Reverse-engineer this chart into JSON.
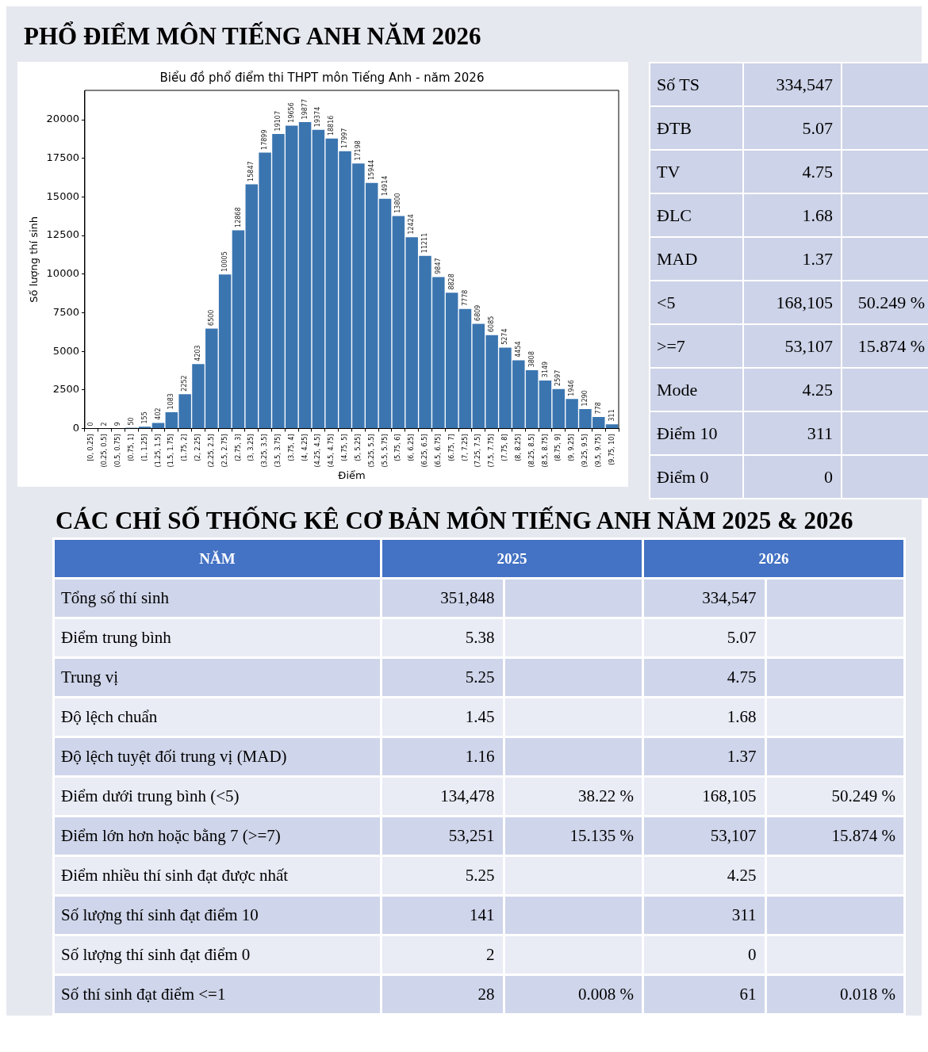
{
  "chart_data": [
    {
      "type": "other",
      "title": "PHỔ ĐIỂM MÔN TIẾNG ANH NĂM 2026"
    },
    {
      "type": "bar",
      "title": "Biểu đồ phổ điểm thi THPT môn Tiếng Anh - năm 2026",
      "xlabel": "Điểm",
      "ylabel": "Số lượng thí sinh",
      "color": "#3a75b0",
      "data_labels": true,
      "categories": [
        "[0, 0.25]",
        "(0.25, 0.5]",
        "(0.5, 0.75]",
        "(0.75, 1]",
        "(1, 1.25]",
        "(1.25, 1.5]",
        "(1.5, 1.75]",
        "(1.75, 2]",
        "(2, 2.25]",
        "(2.25, 2.5]",
        "(2.5, 2.75]",
        "(2.75, 3]",
        "(3, 3.25]",
        "(3.25, 3.5]",
        "(3.5, 3.75]",
        "(3.75, 4]",
        "(4, 4.25]",
        "(4.25, 4.5]",
        "(4.5, 4.75]",
        "(4.75, 5]",
        "(5, 5.25]",
        "(5.25, 5.5]",
        "(5.5, 5.75]",
        "(5.75, 6]",
        "(6, 6.25]",
        "(6.25, 6.5]",
        "(6.5, 6.75]",
        "(6.75, 7]",
        "(7, 7.25]",
        "(7.25, 7.5]",
        "(7.5, 7.75]",
        "(7.75, 8]",
        "(8, 8.25]",
        "(8.25, 8.5]",
        "(8.5, 8.75]",
        "(8.75, 9]",
        "(9, 9.25]",
        "(9.25, 9.5]",
        "(9.5, 9.75]",
        "(9.75, 10]"
      ],
      "values": [
        0,
        2,
        9,
        50,
        155,
        402,
        1083,
        2252,
        4203,
        6500,
        10005,
        12868,
        15847,
        17899,
        19107,
        19656,
        19877,
        19374,
        18816,
        17997,
        17198,
        15944,
        14914,
        13800,
        12424,
        11211,
        9847,
        8828,
        7778,
        6809,
        6085,
        5274,
        4454,
        3808,
        3149,
        2597,
        1946,
        1290,
        778,
        311
      ],
      "ylim": [
        0,
        21900
      ],
      "yticks": [
        0,
        2500,
        5000,
        7500,
        10000,
        12500,
        15000,
        17500,
        20000
      ]
    },
    {
      "type": "other",
      "y_categories": [
        "Số TS",
        "ĐTB",
        "TV",
        "ĐLC",
        "MAD",
        "<5",
        ">=7",
        "Mode",
        "Điểm 10",
        "Điểm 0"
      ],
      "cell_labels": [
        [
          "334,547",
          null
        ],
        [
          "5.07",
          null
        ],
        [
          "4.75",
          null
        ],
        [
          "1.68",
          null
        ],
        [
          "1.37",
          null
        ],
        [
          "168,105",
          "50.249 %"
        ],
        [
          "53,107",
          "15.874 %"
        ],
        [
          "4.25",
          null
        ],
        [
          "311",
          null
        ],
        [
          "0",
          null
        ]
      ]
    },
    {
      "type": "other",
      "title": "CÁC CHỈ SỐ THỐNG KÊ CƠ BẢN MÔN TIẾNG ANH NĂM 2025 & 2026",
      "categories": [
        "NĂM",
        "2025",
        "2026"
      ],
      "y_categories": [
        "Tổng số thí sinh",
        "Điểm trung bình",
        "Trung vị",
        "Độ lệch chuẩn",
        "Độ lệch tuyệt đối trung vị (MAD)",
        "Điểm dưới trung bình (<5)",
        "Điểm lớn hơn hoặc bằng 7 (>=7)",
        "Điểm nhiều thí sinh đạt được nhất",
        "Số lượng thí sinh đạt điểm 10",
        "Số lượng thí sinh đạt điểm 0",
        "Số thí sinh đạt điểm <=1"
      ],
      "cell_labels": [
        [
          "351,848",
          null,
          "334,547",
          null
        ],
        [
          "5.38",
          null,
          "5.07",
          null
        ],
        [
          "5.25",
          null,
          "4.75",
          null
        ],
        [
          "1.45",
          null,
          "1.68",
          null
        ],
        [
          "1.16",
          null,
          "1.37",
          null
        ],
        [
          "134,478",
          "38.22 %",
          "168,105",
          "50.249 %"
        ],
        [
          "53,251",
          "15.135 %",
          "53,107",
          "15.874 %"
        ],
        [
          "5.25",
          null,
          "4.25",
          null
        ],
        [
          "141",
          null,
          "311",
          null
        ],
        [
          "2",
          null,
          "0",
          null
        ],
        [
          "28",
          "0.008 %",
          "61",
          "0.018 %"
        ]
      ]
    }
  ]
}
